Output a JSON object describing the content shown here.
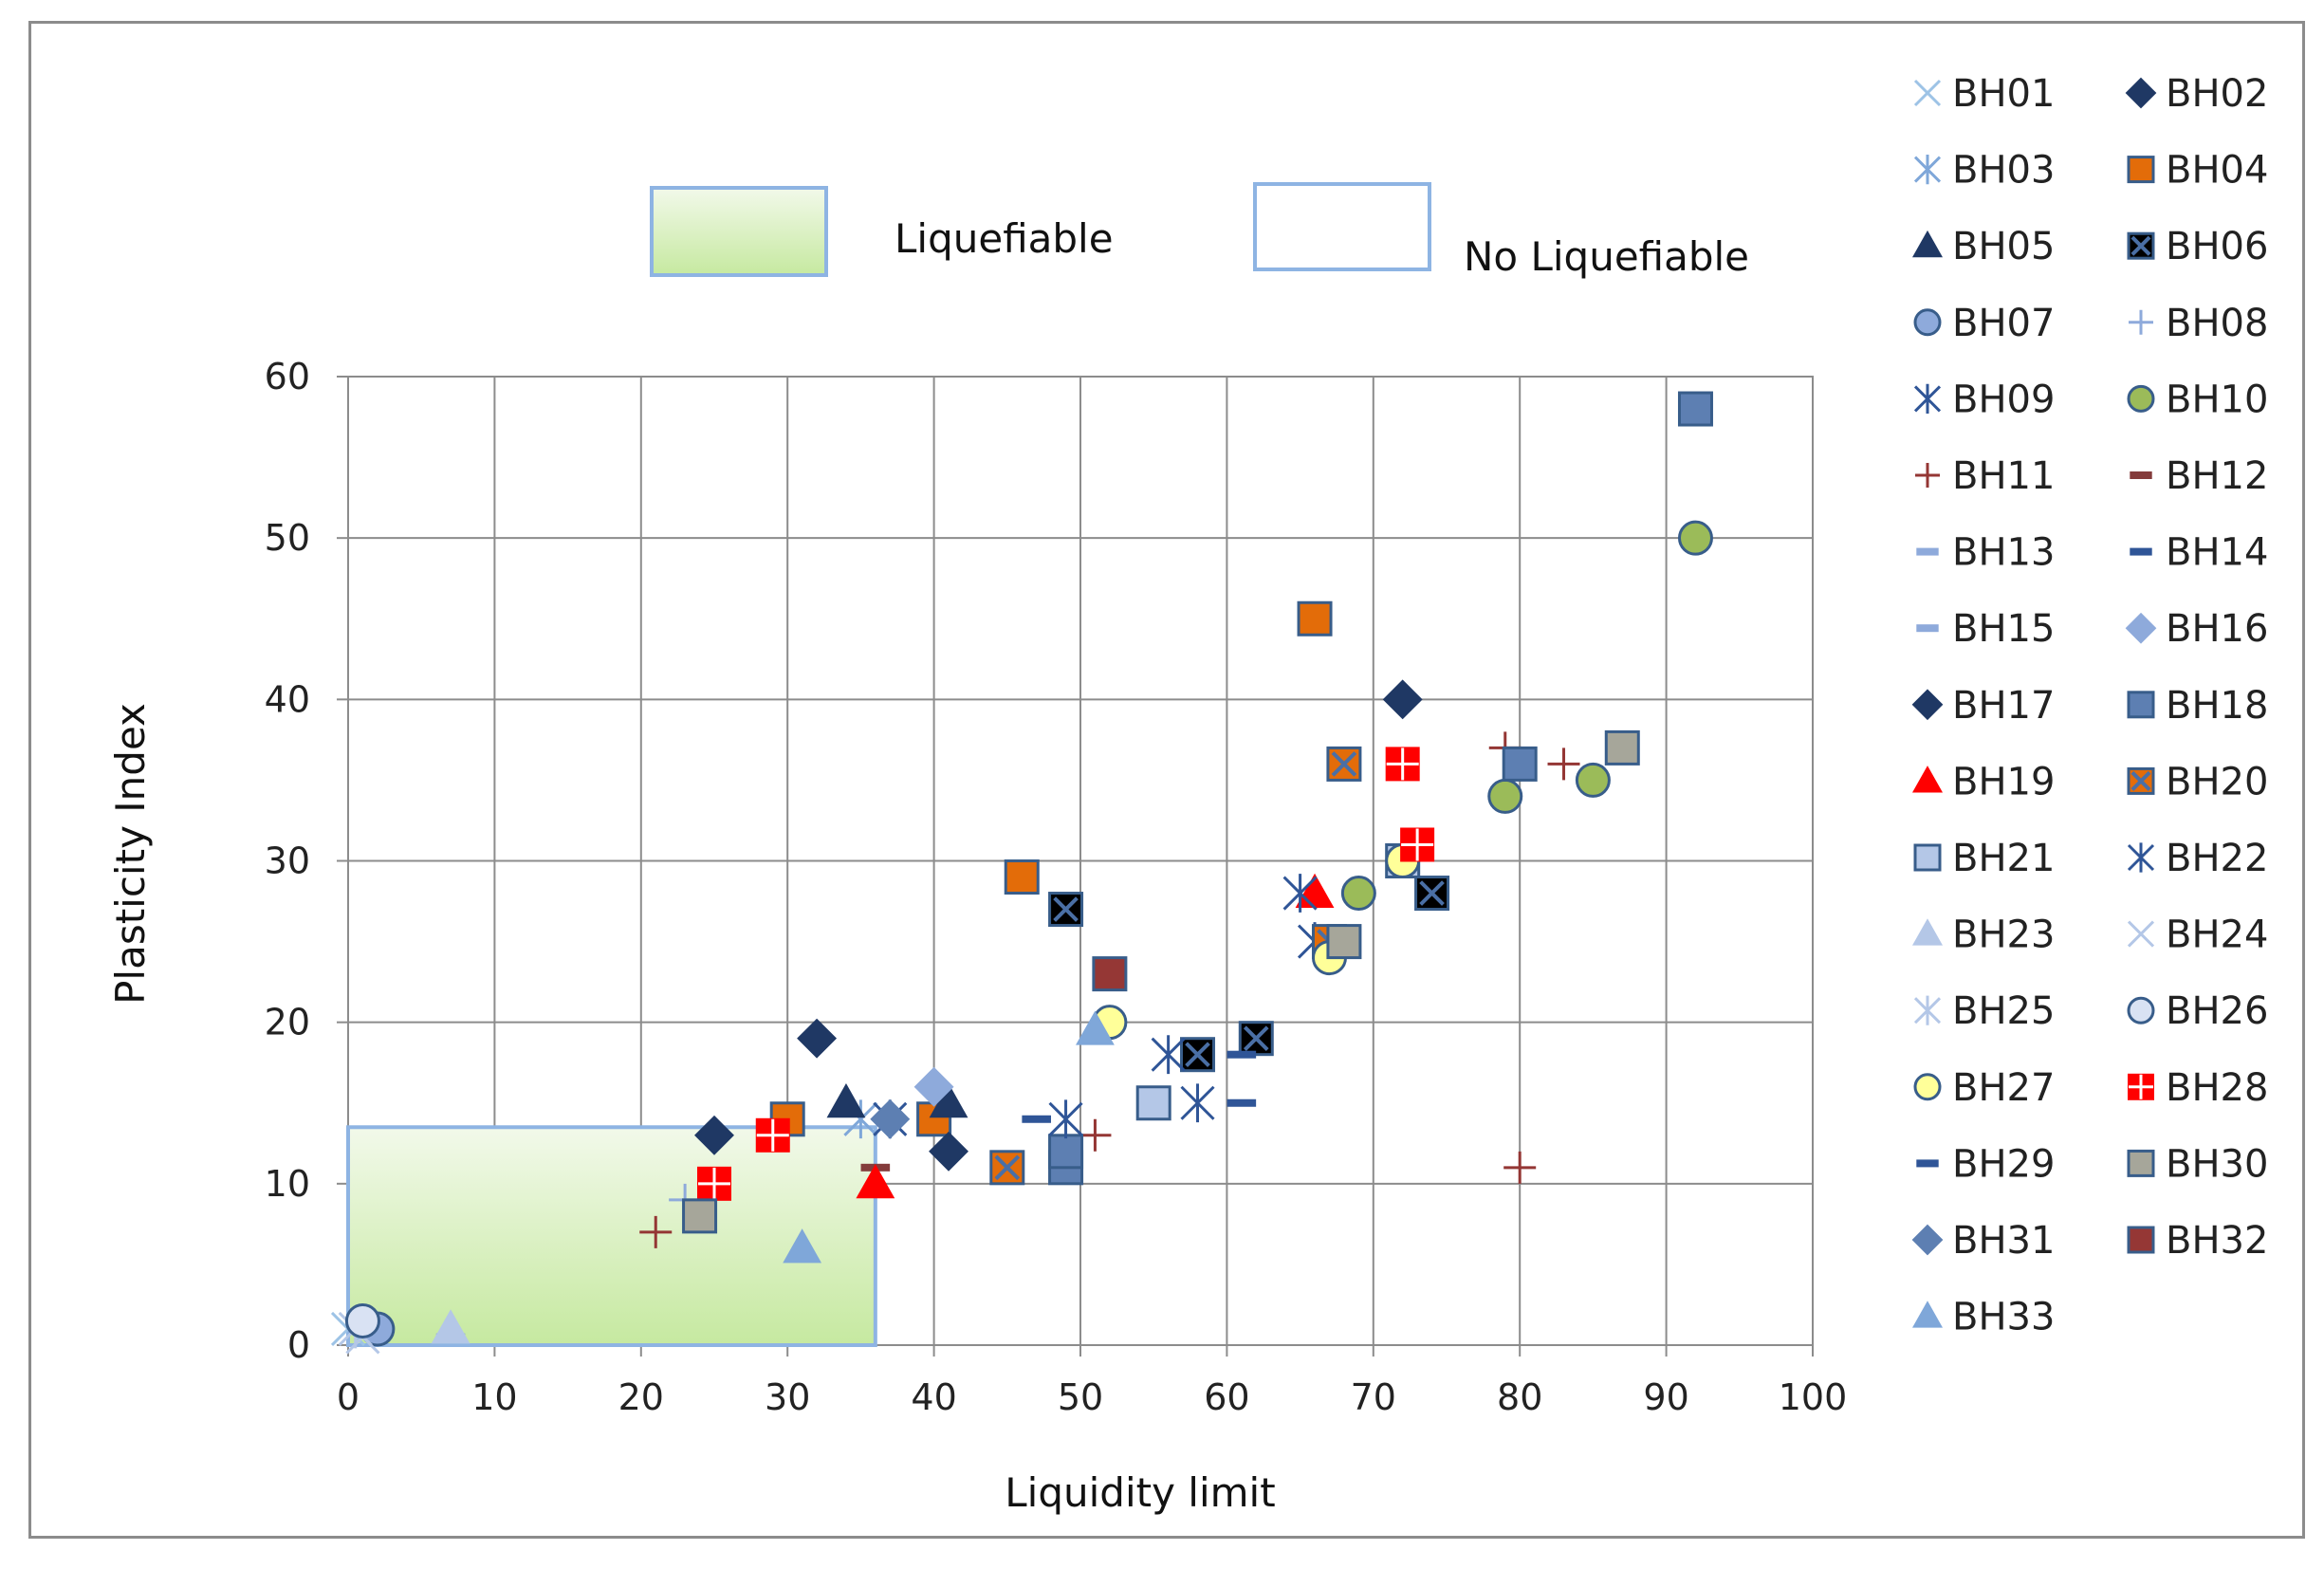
{
  "chart_data": {
    "type": "scatter",
    "title": "",
    "xlabel": "Liquidity limit",
    "ylabel": "Plasticity Index",
    "xlim": [
      0,
      100
    ],
    "ylim": [
      0,
      60
    ],
    "x_ticks": [
      0,
      10,
      20,
      30,
      40,
      50,
      60,
      70,
      80,
      90,
      100
    ],
    "y_ticks": [
      0,
      10,
      20,
      30,
      40,
      50,
      60
    ],
    "grid": true,
    "zones": {
      "liquefiable": {
        "label": "Liquefiable",
        "x": [
          0,
          36
        ],
        "y": [
          0,
          13.5
        ],
        "color": "#c6e9a0"
      },
      "no_liquefiable": {
        "label": "No Liquefiable"
      }
    },
    "legend_position": "right",
    "series": [
      {
        "name": "BH01",
        "marker": "x",
        "color": "#9dc3e6",
        "points": [
          [
            0,
            1
          ]
        ]
      },
      {
        "name": "BH02",
        "marker": "diamond",
        "color": "#1f3864",
        "points": [
          [
            72,
            40
          ]
        ]
      },
      {
        "name": "BH03",
        "marker": "star",
        "color": "#7fa7d9",
        "points": [
          [
            35,
            14
          ]
        ]
      },
      {
        "name": "BH04",
        "marker": "square",
        "color": "#e36c09",
        "points": [
          [
            46,
            29
          ],
          [
            66,
            45
          ],
          [
            30,
            14
          ],
          [
            40,
            14
          ]
        ]
      },
      {
        "name": "BH05",
        "marker": "triangle",
        "color": "#1f3864",
        "points": [
          [
            34,
            15
          ],
          [
            41,
            15
          ]
        ]
      },
      {
        "name": "BH06",
        "marker": "squarex",
        "color": "#000000",
        "points": [
          [
            49,
            27
          ],
          [
            58,
            18
          ],
          [
            62,
            19
          ],
          [
            74,
            28
          ]
        ]
      },
      {
        "name": "BH07",
        "marker": "circle",
        "color": "#8eaadb",
        "points": [
          [
            2,
            1
          ]
        ]
      },
      {
        "name": "BH08",
        "marker": "plus",
        "color": "#8eaadb",
        "points": [
          [
            23,
            9
          ]
        ]
      },
      {
        "name": "BH09",
        "marker": "star",
        "color": "#2f5597",
        "points": [
          [
            37,
            14
          ],
          [
            58,
            15
          ],
          [
            66,
            25
          ]
        ]
      },
      {
        "name": "BH10",
        "marker": "circle",
        "color": "#9bbb59",
        "points": [
          [
            92,
            50
          ],
          [
            85,
            35
          ],
          [
            79,
            34
          ],
          [
            69,
            28
          ]
        ]
      },
      {
        "name": "BH11",
        "marker": "plus",
        "color": "#943634",
        "points": [
          [
            79,
            37
          ],
          [
            83,
            36
          ],
          [
            80,
            11
          ],
          [
            51,
            13
          ],
          [
            21,
            7
          ]
        ]
      },
      {
        "name": "BH12",
        "marker": "dash",
        "color": "#843c3c",
        "points": [
          [
            36,
            11
          ]
        ]
      },
      {
        "name": "BH13",
        "marker": "dash",
        "color": "#8eaadb",
        "points": [
          [
            7,
            0.5
          ]
        ]
      },
      {
        "name": "BH14",
        "marker": "dash",
        "color": "#2f5597",
        "points": [
          [
            47,
            14
          ],
          [
            61,
            15
          ]
        ]
      },
      {
        "name": "BH15",
        "marker": "dash",
        "color": "#8eaadb",
        "points": [
          [
            1,
            1
          ]
        ]
      },
      {
        "name": "BH16",
        "marker": "diamond",
        "color": "#8eaadb",
        "points": [
          [
            40,
            16
          ]
        ]
      },
      {
        "name": "BH17",
        "marker": "diamond",
        "color": "#1f3864",
        "points": [
          [
            25,
            13
          ],
          [
            32,
            19
          ],
          [
            41,
            12
          ]
        ]
      },
      {
        "name": "BH18",
        "marker": "square",
        "color": "#5d7fb2",
        "points": [
          [
            92,
            58
          ],
          [
            80,
            36
          ],
          [
            49,
            11
          ],
          [
            49,
            12
          ]
        ]
      },
      {
        "name": "BH19",
        "marker": "triangle",
        "color": "#ff0000",
        "points": [
          [
            36,
            10
          ],
          [
            66,
            28
          ]
        ]
      },
      {
        "name": "BH20",
        "marker": "squarex",
        "color": "#e36c09",
        "points": [
          [
            68,
            36
          ],
          [
            45,
            11
          ],
          [
            67,
            25
          ]
        ]
      },
      {
        "name": "BH21",
        "marker": "square",
        "color": "#b4c7e7",
        "points": [
          [
            72,
            30
          ],
          [
            55,
            15
          ]
        ]
      },
      {
        "name": "BH22",
        "marker": "star",
        "color": "#2f5597",
        "points": [
          [
            65,
            28
          ],
          [
            56,
            18
          ],
          [
            49,
            14
          ]
        ]
      },
      {
        "name": "BH23",
        "marker": "triangle",
        "color": "#b4c7e7",
        "points": [
          [
            7,
            1
          ]
        ]
      },
      {
        "name": "BH24",
        "marker": "x",
        "color": "#b4c7e7",
        "points": [
          [
            1,
            0.5
          ]
        ]
      },
      {
        "name": "BH25",
        "marker": "star",
        "color": "#b4c7e7",
        "points": [
          [
            0.5,
            1
          ]
        ]
      },
      {
        "name": "BH26",
        "marker": "circle",
        "color": "#d9e2f3",
        "points": [
          [
            1,
            1.5
          ]
        ]
      },
      {
        "name": "BH27",
        "marker": "circle",
        "color": "#ffff99",
        "points": [
          [
            52,
            20
          ],
          [
            67,
            24
          ],
          [
            72,
            30
          ]
        ]
      },
      {
        "name": "BH28",
        "marker": "squareplus",
        "color": "#ff0000",
        "points": [
          [
            72,
            36
          ],
          [
            73,
            31
          ],
          [
            29,
            13
          ],
          [
            25,
            10
          ]
        ]
      },
      {
        "name": "BH29",
        "marker": "dash",
        "color": "#2f5597",
        "points": [
          [
            61,
            18
          ]
        ]
      },
      {
        "name": "BH30",
        "marker": "square",
        "color": "#a6a69a",
        "points": [
          [
            87,
            37
          ],
          [
            68,
            25
          ],
          [
            24,
            8
          ]
        ]
      },
      {
        "name": "BH31",
        "marker": "diamond",
        "color": "#5d7fb2",
        "points": [
          [
            37,
            14
          ]
        ]
      },
      {
        "name": "BH32",
        "marker": "square",
        "color": "#953735",
        "points": [
          [
            52,
            23
          ]
        ]
      },
      {
        "name": "BH33",
        "marker": "triangle",
        "color": "#7fa7d9",
        "points": [
          [
            51,
            19.5
          ],
          [
            31,
            6
          ]
        ]
      }
    ]
  }
}
